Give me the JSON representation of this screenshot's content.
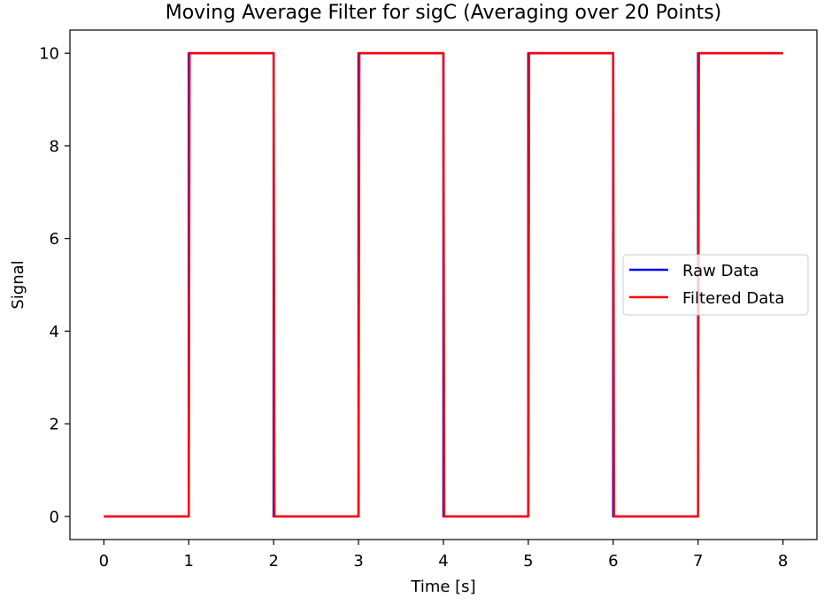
{
  "chart_data": {
    "type": "line",
    "title": "Moving Average Filter for sigC (Averaging over 20 Points)",
    "xlabel": "Time [s]",
    "ylabel": "Signal",
    "xlim": [
      -0.4,
      8.4
    ],
    "ylim": [
      -0.5,
      10.5
    ],
    "xticks": [
      "0",
      "1",
      "2",
      "3",
      "4",
      "5",
      "6",
      "7",
      "8"
    ],
    "yticks": [
      "0",
      "2",
      "4",
      "6",
      "8",
      "10"
    ],
    "grid": false,
    "legend_position": "center-right",
    "series": [
      {
        "name": "Raw Data",
        "color": "#0000ff",
        "x": [
          0,
          1,
          1,
          2,
          2,
          3,
          3,
          4,
          4,
          5,
          5,
          6,
          6,
          7,
          7,
          8
        ],
        "y": [
          0,
          0,
          10,
          10,
          0,
          0,
          10,
          10,
          0,
          0,
          10,
          10,
          0,
          0,
          10,
          10
        ]
      },
      {
        "name": "Filtered Data",
        "color": "#ff0000",
        "x": [
          0,
          1,
          1.01,
          2,
          2.01,
          3,
          3.01,
          4,
          4.01,
          5,
          5.01,
          6,
          6.01,
          7,
          7.01,
          8
        ],
        "y": [
          0,
          0,
          10,
          10,
          0,
          0,
          10,
          10,
          0,
          0,
          10,
          10,
          0,
          0,
          10,
          10
        ]
      }
    ]
  }
}
